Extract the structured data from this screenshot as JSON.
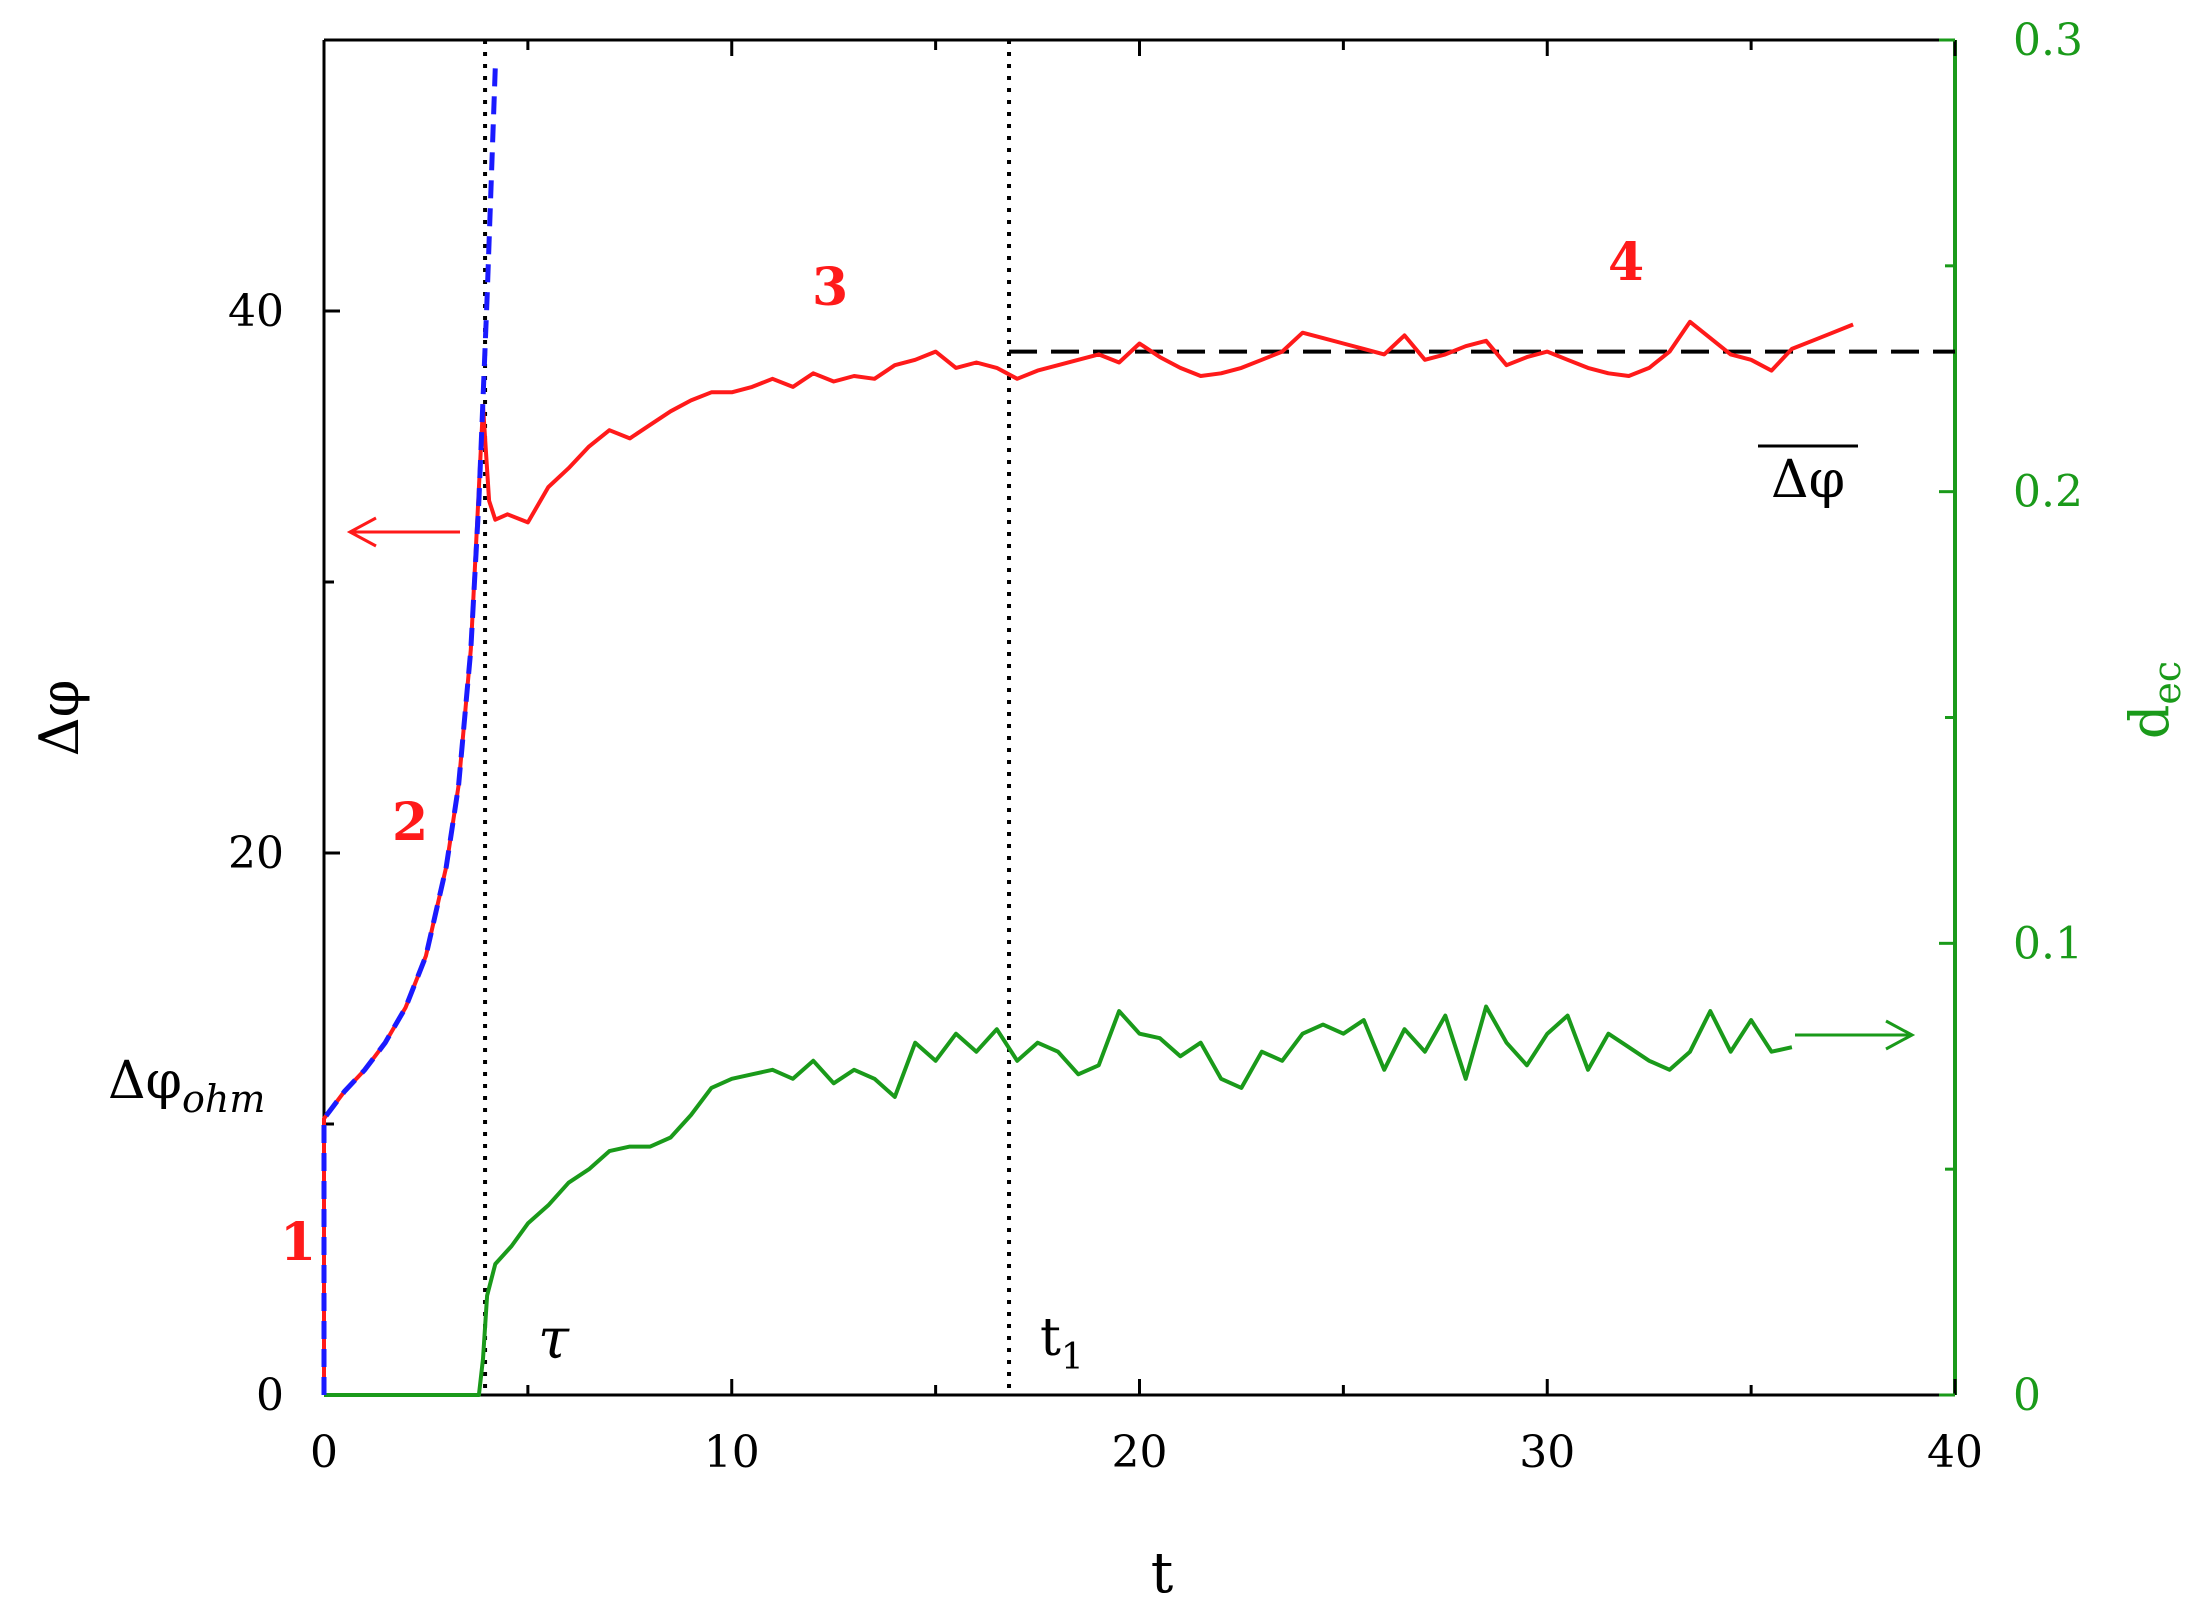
{
  "colors": {
    "red": "#ff1a1a",
    "blue": "#1a1aff",
    "green": "#1a9a1a",
    "black": "#000000"
  },
  "chart_data": {
    "type": "line",
    "xlabel": "t",
    "ylabel_left": "Δφ",
    "ylabel_right": "d",
    "ylabel_right_subscript": "ec",
    "xlim": [
      0,
      40
    ],
    "ylim_left": [
      0,
      50
    ],
    "ylim_right": [
      0,
      0.3
    ],
    "x_ticks": [
      "0",
      "10",
      "20",
      "30",
      "40"
    ],
    "left_ticks": [
      "0",
      "20",
      "40"
    ],
    "right_ticks": [
      "0",
      "0.1",
      "0.2",
      "0.3"
    ],
    "left_tick_values": [
      0,
      20,
      40
    ],
    "right_tick_values": [
      0,
      0.1,
      0.2,
      0.3
    ],
    "x_tick_values": [
      0,
      10,
      20,
      30,
      40
    ],
    "grid": false,
    "series": [
      {
        "axis": "left",
        "style": "dashed-blue",
        "x": [
          0,
          0,
          0.5,
          1.0,
          1.5,
          2.0,
          2.5,
          3.0,
          3.3,
          3.6,
          3.8,
          4.0,
          4.2
        ],
        "y": [
          0,
          10.2,
          11.2,
          12.0,
          13.0,
          14.3,
          16.2,
          19.5,
          22.5,
          27.5,
          33.0,
          40.5,
          49.0
        ]
      },
      {
        "axis": "left",
        "style": "solid-red",
        "x": [
          0,
          0,
          0.5,
          1.0,
          1.5,
          2.0,
          2.5,
          3.0,
          3.3,
          3.6,
          3.9,
          4.05,
          4.2,
          4.5,
          5.0,
          5.5,
          6.0,
          6.5,
          7.0,
          7.5,
          8.0,
          8.5,
          9.0,
          9.5,
          10.0,
          10.5,
          11.0,
          11.5,
          12.0,
          12.5,
          13.0,
          13.5,
          14.0,
          14.5,
          15.0,
          15.5,
          16.0,
          16.5,
          17.0,
          17.5,
          18.0,
          18.5,
          19.0,
          19.5,
          20.0,
          20.5,
          21.0,
          21.5,
          22.0,
          22.5,
          23.0,
          23.5,
          24.0,
          24.5,
          25.0,
          25.5,
          26.0,
          26.5,
          27.0,
          27.5,
          28.0,
          28.5,
          29.0,
          29.5,
          30.0,
          30.5,
          31.0,
          31.5,
          32.0,
          32.5,
          33.0,
          33.5,
          34.0,
          34.5,
          35.0,
          35.5,
          36.0,
          36.5,
          37.0,
          37.5
        ],
        "y": [
          0,
          10.2,
          11.2,
          12.0,
          13.0,
          14.3,
          16.2,
          19.5,
          22.5,
          27.5,
          36.5,
          33.0,
          32.3,
          32.5,
          32.2,
          33.5,
          34.2,
          35.0,
          35.6,
          35.3,
          35.8,
          36.3,
          36.7,
          37.0,
          37.0,
          37.2,
          37.5,
          37.2,
          37.7,
          37.4,
          37.6,
          37.5,
          38.0,
          38.2,
          38.5,
          37.9,
          38.1,
          37.9,
          37.5,
          37.8,
          38.0,
          38.2,
          38.4,
          38.1,
          38.8,
          38.3,
          37.9,
          37.6,
          37.7,
          37.9,
          38.2,
          38.5,
          39.2,
          39.0,
          38.8,
          38.6,
          38.4,
          39.1,
          38.2,
          38.4,
          38.7,
          38.9,
          38.0,
          38.3,
          38.5,
          38.2,
          37.9,
          37.7,
          37.6,
          37.9,
          38.5,
          39.6,
          39.0,
          38.4,
          38.2,
          37.8,
          38.6,
          38.9,
          39.2,
          39.5
        ]
      },
      {
        "axis": "right",
        "style": "solid-green",
        "x": [
          0,
          3.8,
          3.9,
          4.0,
          4.2,
          4.6,
          5.0,
          5.5,
          6.0,
          6.5,
          7.0,
          7.5,
          8.0,
          8.5,
          9.0,
          9.5,
          10.0,
          10.5,
          11.0,
          11.5,
          12.0,
          12.5,
          13.0,
          13.5,
          14.0,
          14.5,
          15.0,
          15.5,
          16.0,
          16.5,
          17.0,
          17.5,
          18.0,
          18.5,
          19.0,
          19.5,
          20.0,
          20.5,
          21.0,
          21.5,
          22.0,
          22.5,
          23.0,
          23.5,
          24.0,
          24.5,
          25.0,
          25.5,
          26.0,
          26.5,
          27.0,
          27.5,
          28.0,
          28.5,
          29.0,
          29.5,
          30.0,
          30.5,
          31.0,
          31.5,
          32.0,
          32.5,
          33.0,
          33.5,
          34.0,
          34.5,
          35.0,
          35.5,
          36.0
        ],
        "y": [
          0,
          0,
          0.008,
          0.022,
          0.029,
          0.033,
          0.038,
          0.042,
          0.047,
          0.05,
          0.054,
          0.055,
          0.055,
          0.057,
          0.062,
          0.068,
          0.07,
          0.071,
          0.072,
          0.07,
          0.074,
          0.069,
          0.072,
          0.07,
          0.066,
          0.078,
          0.074,
          0.08,
          0.076,
          0.081,
          0.074,
          0.078,
          0.076,
          0.071,
          0.073,
          0.085,
          0.08,
          0.079,
          0.075,
          0.078,
          0.07,
          0.068,
          0.076,
          0.074,
          0.08,
          0.082,
          0.08,
          0.083,
          0.072,
          0.081,
          0.076,
          0.084,
          0.07,
          0.086,
          0.078,
          0.073,
          0.08,
          0.084,
          0.072,
          0.08,
          0.077,
          0.074,
          0.072,
          0.076,
          0.085,
          0.076,
          0.083,
          0.076,
          0.077
        ]
      }
    ],
    "reference_lines": [
      {
        "kind": "vertical-dotted",
        "x": 3.95
      },
      {
        "kind": "vertical-dotted",
        "x": 16.8
      },
      {
        "kind": "horizontal-dashed",
        "y": 38.5,
        "x_from": 16.8,
        "x_to": 40
      }
    ],
    "annotations": {
      "region_1": "1",
      "region_2": "2",
      "region_3": "3",
      "region_4": "4",
      "tau": "τ",
      "t1": "t",
      "t1_subscript": "1",
      "dphi_ohm": "Δφ",
      "dphi_ohm_subscript": "ohm",
      "dphi_mean": "Δφ"
    }
  }
}
